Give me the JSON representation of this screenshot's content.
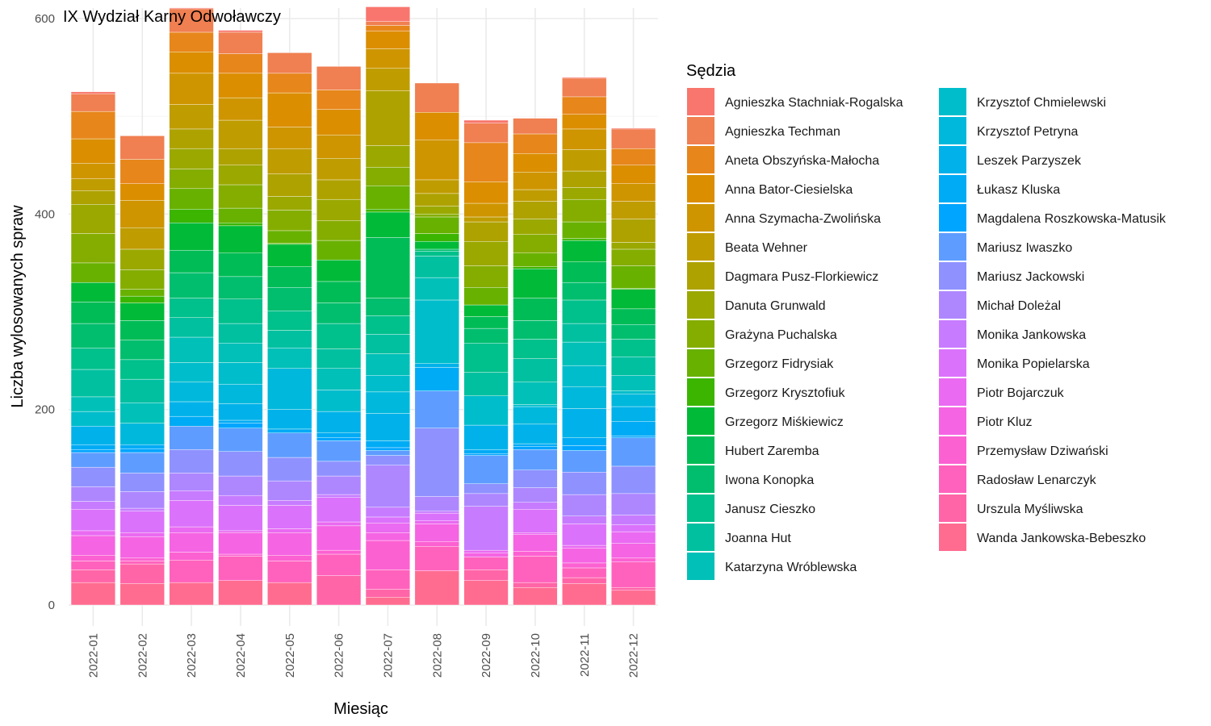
{
  "chart_data": {
    "type": "bar",
    "stacked": true,
    "title": "IX Wydział Karny Odwoławczy",
    "xlabel": "Miesiąc",
    "ylabel": "Liczba wylosowanych spraw",
    "ylim": [
      0,
      600
    ],
    "yticks": [
      0,
      200,
      400,
      600
    ],
    "grid": true,
    "legend_title": "Sędzia",
    "legend_position": "right",
    "categories": [
      "2022-01",
      "2022-02",
      "2022-03",
      "2022-04",
      "2022-05",
      "2022-06",
      "2022-07",
      "2022-08",
      "2022-09",
      "2022-10",
      "2022-11",
      "2022-12"
    ],
    "series": [
      {
        "name": "Agnieszka Stachniak-Rogalska",
        "color": "#F8766D",
        "values": [
          2,
          0,
          1,
          2,
          0,
          0,
          15,
          0,
          3,
          0,
          1,
          1
        ]
      },
      {
        "name": "Agnieszka Techman",
        "color": "#F07F51",
        "values": [
          18,
          24,
          24,
          22,
          21,
          24,
          4,
          30,
          20,
          16,
          19,
          20
        ]
      },
      {
        "name": "Aneta Obszyńska-Małocha",
        "color": "#E7861B",
        "values": [
          28,
          25,
          20,
          20,
          20,
          20,
          6,
          0,
          40,
          20,
          18,
          17
        ]
      },
      {
        "name": "Anna Bator-Ciesielska",
        "color": "#DB8E00",
        "values": [
          25,
          17,
          22,
          25,
          35,
          26,
          18,
          28,
          22,
          19,
          15,
          19
        ]
      },
      {
        "name": "Anna Szymacha-Zwolińska",
        "color": "#CE9500",
        "values": [
          16,
          28,
          32,
          23,
          22,
          24,
          20,
          41,
          14,
          18,
          21,
          18
        ]
      },
      {
        "name": "Beata Wehner",
        "color": "#BF9C00",
        "values": [
          12,
          22,
          25,
          29,
          26,
          22,
          23,
          14,
          5,
          12,
          22,
          18
        ]
      },
      {
        "name": "Dagmara Pusz-Florkiewicz",
        "color": "#AEA200",
        "values": [
          14,
          0,
          20,
          17,
          23,
          20,
          56,
          13,
          20,
          18,
          17,
          24
        ]
      },
      {
        "name": "Danuta Grunwald",
        "color": "#9AA800",
        "values": [
          30,
          21,
          21,
          20,
          14,
          22,
          22,
          8,
          25,
          16,
          12,
          7
        ]
      },
      {
        "name": "Grażyna Puchalska",
        "color": "#84AD00",
        "values": [
          30,
          20,
          20,
          24,
          21,
          20,
          19,
          3,
          22,
          19,
          23,
          17
        ]
      },
      {
        "name": "Grzegorz Fidrysiak",
        "color": "#68B100",
        "values": [
          20,
          7,
          21,
          15,
          13,
          20,
          24,
          17,
          18,
          14,
          17,
          23
        ]
      },
      {
        "name": "Grzegorz Krysztofiuk",
        "color": "#3BB500",
        "values": [
          0,
          7,
          14,
          3,
          1,
          0,
          3,
          8,
          0,
          2,
          2,
          1
        ]
      },
      {
        "name": "Grzegorz Miśkiewicz",
        "color": "#00BA38",
        "values": [
          20,
          18,
          28,
          28,
          23,
          22,
          26,
          8,
          12,
          30,
          22,
          20
        ]
      },
      {
        "name": "Hubert Zaremba",
        "color": "#00BC56",
        "values": [
          22,
          20,
          23,
          24,
          21,
          22,
          62,
          0,
          12,
          23,
          21,
          16
        ]
      },
      {
        "name": "Iwona Konopka",
        "color": "#00BE6E",
        "values": [
          25,
          20,
          26,
          23,
          24,
          21,
          18,
          2,
          15,
          19,
          18,
          15
        ]
      },
      {
        "name": "Janusz Cieszko",
        "color": "#00C08B",
        "values": [
          22,
          20,
          20,
          25,
          20,
          26,
          19,
          5,
          30,
          20,
          24,
          18
        ]
      },
      {
        "name": "Joanna Hut",
        "color": "#00C0A0",
        "values": [
          28,
          24,
          20,
          20,
          18,
          20,
          20,
          22,
          24,
          24,
          19,
          19
        ]
      },
      {
        "name": "Katarzyna Wróblewska",
        "color": "#00C0B8",
        "values": [
          15,
          21,
          26,
          20,
          21,
          22,
          22,
          23,
          0,
          23,
          24,
          16
        ]
      },
      {
        "name": "Krzysztof Chmielewski",
        "color": "#00BDCC",
        "values": [
          15,
          0,
          20,
          22,
          0,
          22,
          17,
          65,
          30,
          2,
          22,
          3
        ]
      },
      {
        "name": "Krzysztof Petryna",
        "color": "#00B8DC",
        "values": [
          0,
          22,
          20,
          20,
          42,
          0,
          22,
          0,
          0,
          18,
          22,
          13
        ]
      },
      {
        "name": "Leszek Parzyszek",
        "color": "#00B2E9",
        "values": [
          19,
          0,
          15,
          17,
          20,
          22,
          28,
          4,
          25,
          20,
          30,
          15
        ]
      },
      {
        "name": "Łukasz Kluska",
        "color": "#00ABF5",
        "values": [
          5,
          4,
          10,
          3,
          4,
          5,
          7,
          24,
          4,
          3,
          8,
          15
        ]
      },
      {
        "name": "Magdalena Roszkowska-Matusik",
        "color": "#00A5FF",
        "values": [
          3,
          4,
          0,
          5,
          0,
          3,
          3,
          0,
          2,
          3,
          5,
          2
        ]
      },
      {
        "name": "Mariusz Iwaszko",
        "color": "#5E9DFF",
        "values": [
          15,
          21,
          24,
          24,
          25,
          21,
          5,
          38,
          29,
          21,
          22,
          29
        ]
      },
      {
        "name": "Mariusz Jackowski",
        "color": "#8F91FF",
        "values": [
          20,
          19,
          24,
          25,
          24,
          15,
          10,
          70,
          10,
          18,
          23,
          28
        ]
      },
      {
        "name": "Michał Doleżal",
        "color": "#AE87FF",
        "values": [
          15,
          17,
          18,
          20,
          20,
          19,
          43,
          15,
          13,
          15,
          22,
          22
        ]
      },
      {
        "name": "Monika Jankowska",
        "color": "#C77CFF",
        "values": [
          8,
          3,
          10,
          10,
          5,
          3,
          10,
          2,
          45,
          7,
          8,
          10
        ]
      },
      {
        "name": "Monika Popielarska",
        "color": "#DB72FB",
        "values": [
          22,
          22,
          27,
          26,
          24,
          25,
          6,
          8,
          0,
          24,
          22,
          7
        ]
      },
      {
        "name": "Piotr Bojarczuk",
        "color": "#EA6AF1",
        "values": [
          5,
          4,
          6,
          2,
          4,
          4,
          10,
          3,
          3,
          2,
          3,
          12
        ]
      },
      {
        "name": "Piotr Kluz",
        "color": "#F564E3",
        "values": [
          20,
          22,
          20,
          22,
          23,
          25,
          8,
          18,
          4,
          17,
          15,
          15
        ]
      },
      {
        "name": "Przemysław Dziwański",
        "color": "#FC61D2",
        "values": [
          6,
          3,
          8,
          2,
          6,
          4,
          30,
          5,
          0,
          5,
          5,
          4
        ]
      },
      {
        "name": "Radosław Lenarczyk",
        "color": "#FF62BC",
        "values": [
          9,
          3,
          23,
          25,
          22,
          22,
          20,
          25,
          13,
          27,
          10,
          26
        ]
      },
      {
        "name": "Urszula Myśliwska",
        "color": "#FF65A7",
        "values": [
          13,
          20,
          0,
          0,
          0,
          30,
          8,
          0,
          11,
          5,
          6,
          3
        ]
      },
      {
        "name": "Wanda Jankowska-Bebeszko",
        "color": "#FF6C90",
        "values": [
          23,
          22,
          23,
          25,
          23,
          0,
          8,
          35,
          25,
          18,
          22,
          15
        ]
      }
    ]
  }
}
